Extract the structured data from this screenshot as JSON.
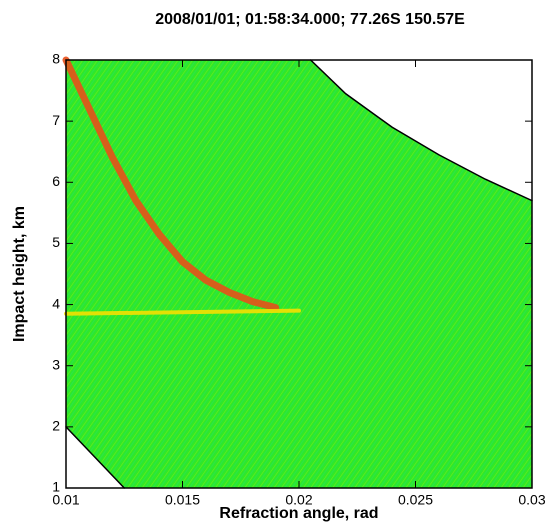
{
  "chart_data": {
    "type": "line",
    "title": "2008/01/01; 01:58:34.000; 77.26S 150.57E",
    "x_label": "Refraction angle, rad",
    "y_label": "Impact height, km",
    "xlim": [
      0.01,
      0.03
    ],
    "xticks": [
      0.01,
      0.015,
      0.02,
      0.025,
      0.03
    ],
    "ylim": [
      1,
      8
    ],
    "yticks": [
      1,
      2,
      3,
      4,
      5,
      6,
      7,
      8
    ],
    "background_color": "#2ee82a",
    "series": [
      {
        "color": "#000000",
        "x": [
          0.0205,
          0.022,
          0.024,
          0.026,
          0.028,
          0.03
        ],
        "values": [
          8,
          7.45,
          6.9,
          6.45,
          6.05,
          5.7
        ]
      },
      {
        "color": "#000000",
        "x": [
          0.01,
          0.0125
        ],
        "values": [
          2,
          1
        ]
      },
      {
        "color": "#e8501a",
        "x": [
          0.01,
          0.011,
          0.012,
          0.013,
          0.014,
          0.015,
          0.016,
          0.017,
          0.018,
          0.019
        ],
        "values": [
          8,
          7.2,
          6.4,
          5.7,
          5.15,
          4.7,
          4.4,
          4.2,
          4.05,
          3.95
        ]
      },
      {
        "color": "#f5e000",
        "x": [
          0.01,
          0.02
        ],
        "values": [
          3.85,
          3.9
        ]
      }
    ]
  }
}
